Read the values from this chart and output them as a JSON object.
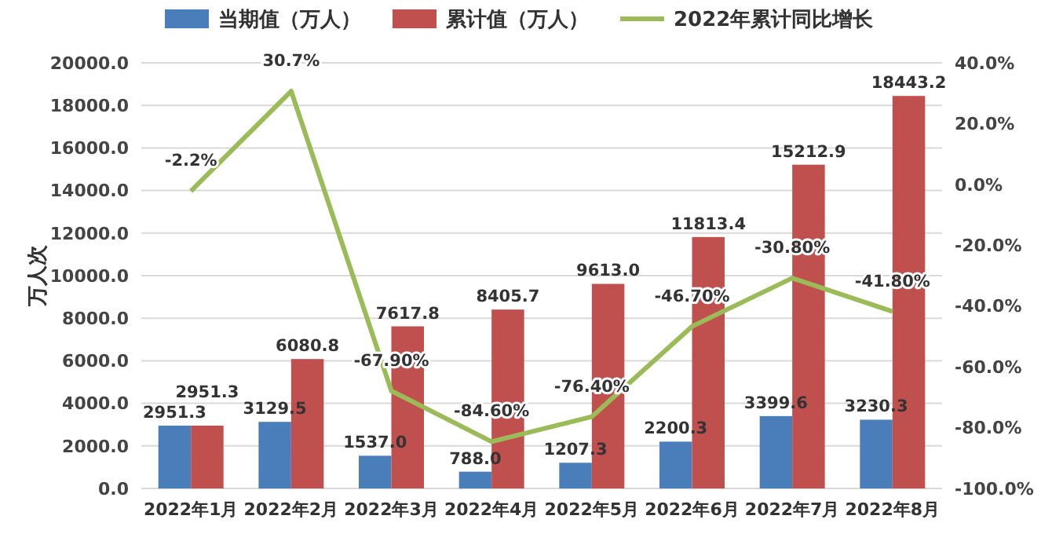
{
  "chart_data": {
    "type": "bar",
    "ylabel": "万人次",
    "categories": [
      "2022年1月",
      "2022年2月",
      "2022年3月",
      "2022年4月",
      "2022年5月",
      "2022年6月",
      "2022年7月",
      "2022年8月"
    ],
    "series": [
      {
        "name": "当期值（万人）",
        "color": "#4a7ebb",
        "values": [
          2951.3,
          3129.5,
          1537.0,
          788.0,
          1207.3,
          2200.3,
          3399.6,
          3230.3
        ],
        "value_labels": [
          "2951.3",
          "3129.5",
          "1537.0",
          "788.0",
          "1207.3",
          "2200.3",
          "3399.6",
          "3230.3"
        ]
      },
      {
        "name": "累计值（万人）",
        "color": "#c0504d",
        "values": [
          2951.3,
          6080.8,
          7617.8,
          8405.7,
          9613.0,
          11813.4,
          15212.9,
          18443.2
        ],
        "value_labels": [
          "2951.3",
          "6080.8",
          "7617.8",
          "8405.7",
          "9613.0",
          "11813.4",
          "15212.9",
          "18443.2"
        ]
      },
      {
        "name": "2022年累计同比增长",
        "type": "line",
        "axis": "y2",
        "color": "#9bbb59",
        "values": [
          -2.2,
          30.7,
          -67.9,
          -84.6,
          -76.4,
          -46.7,
          -30.8,
          -41.8
        ],
        "value_labels": [
          "-2.2%",
          "30.7%",
          "-67.90%",
          "-84.60%",
          "-76.40%",
          "-46.70%",
          "-30.80%",
          "-41.80%"
        ]
      }
    ],
    "ylim": [
      0,
      20000
    ],
    "yticks": [
      {
        "value": 0,
        "label": "0.0"
      },
      {
        "value": 2000,
        "label": "2000.0"
      },
      {
        "value": 4000,
        "label": "4000.0"
      },
      {
        "value": 6000,
        "label": "6000.0"
      },
      {
        "value": 8000,
        "label": "8000.0"
      },
      {
        "value": 10000,
        "label": "10000.0"
      },
      {
        "value": 12000,
        "label": "12000.0"
      },
      {
        "value": 14000,
        "label": "14000.0"
      },
      {
        "value": 16000,
        "label": "16000.0"
      },
      {
        "value": 18000,
        "label": "18000.0"
      },
      {
        "value": 20000,
        "label": "20000.0"
      }
    ],
    "y2lim": [
      -100,
      40
    ],
    "y2ticks": [
      {
        "value": -100,
        "label": "-100.0%"
      },
      {
        "value": -80,
        "label": "-80.0%"
      },
      {
        "value": -60,
        "label": "-60.0%"
      },
      {
        "value": -40,
        "label": "-40.0%"
      },
      {
        "value": -20,
        "label": "-20.0%"
      },
      {
        "value": 0,
        "label": "0.0%"
      },
      {
        "value": 20,
        "label": "20.0%"
      },
      {
        "value": 40,
        "label": "40.0%"
      }
    ],
    "grid": "y",
    "legend": "top",
    "marker": "none"
  }
}
